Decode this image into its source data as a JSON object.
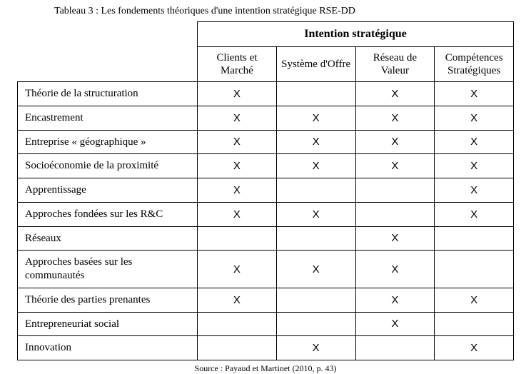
{
  "caption_top": "Tableau 3 : Les fondements théoriques d'une intention stratégique RSE-DD",
  "caption_bottom": "Source : Payaud et Martinet (2010, p. 43)",
  "group_header": "Intention stratégique",
  "mark_symbol": "X",
  "columns": [
    {
      "label": "Clients et Marché"
    },
    {
      "label": "Système d'Offre"
    },
    {
      "label": "Réseau de Valeur"
    },
    {
      "label": "Compétences Stratégiques"
    }
  ],
  "rows": [
    {
      "label": "Théorie de la structuration",
      "cells": [
        true,
        false,
        true,
        true
      ]
    },
    {
      "label": "Encastrement",
      "cells": [
        true,
        true,
        true,
        true
      ]
    },
    {
      "label": "Entreprise « géographique »",
      "cells": [
        true,
        true,
        true,
        true
      ]
    },
    {
      "label": "Socioéconomie de la proximité",
      "cells": [
        true,
        true,
        true,
        true
      ]
    },
    {
      "label": "Apprentissage",
      "cells": [
        true,
        false,
        false,
        true
      ]
    },
    {
      "label": "Approches fondées sur les R&C",
      "cells": [
        true,
        true,
        false,
        true
      ]
    },
    {
      "label": "Réseaux",
      "cells": [
        false,
        false,
        true,
        false
      ]
    },
    {
      "label": "Approches basées sur les communautés",
      "cells": [
        true,
        true,
        true,
        false
      ]
    },
    {
      "label": "Théorie des parties prenantes",
      "cells": [
        true,
        false,
        true,
        true
      ]
    },
    {
      "label": "Entrepreneuriat social",
      "cells": [
        false,
        false,
        true,
        false
      ]
    },
    {
      "label": "Innovation",
      "cells": [
        false,
        true,
        false,
        true
      ]
    }
  ]
}
